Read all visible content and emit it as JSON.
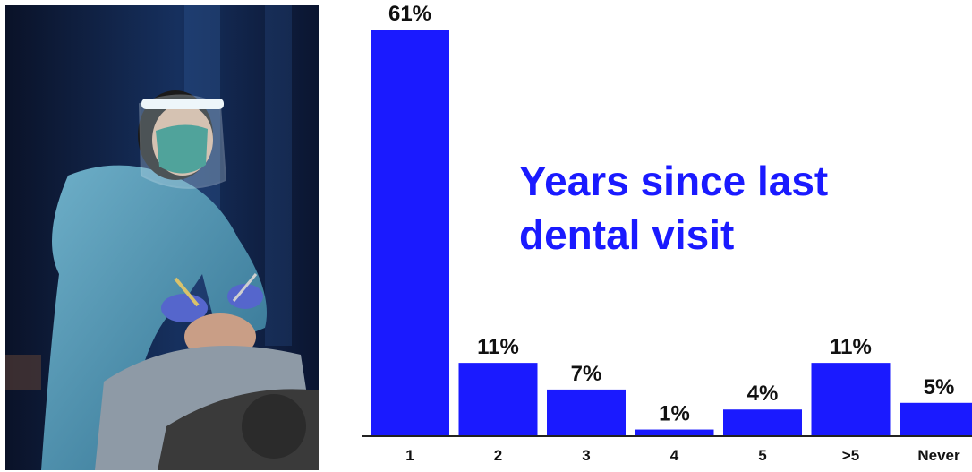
{
  "photo": {
    "alt": "Dentist in face shield and gown examining a patient"
  },
  "chart_data": {
    "type": "bar",
    "title": "Years since last dental visit",
    "categories": [
      "1",
      "2",
      "3",
      "4",
      "5",
      ">5",
      "Never"
    ],
    "values": [
      61,
      11,
      7,
      1,
      4,
      11,
      5
    ],
    "value_labels": [
      "61%",
      "11%",
      "7%",
      "1%",
      "4%",
      "11%",
      "5%"
    ],
    "ylim": [
      0,
      61
    ],
    "grid": false,
    "bar_color": "#1a1aff",
    "title_color": "#1a1aff"
  }
}
